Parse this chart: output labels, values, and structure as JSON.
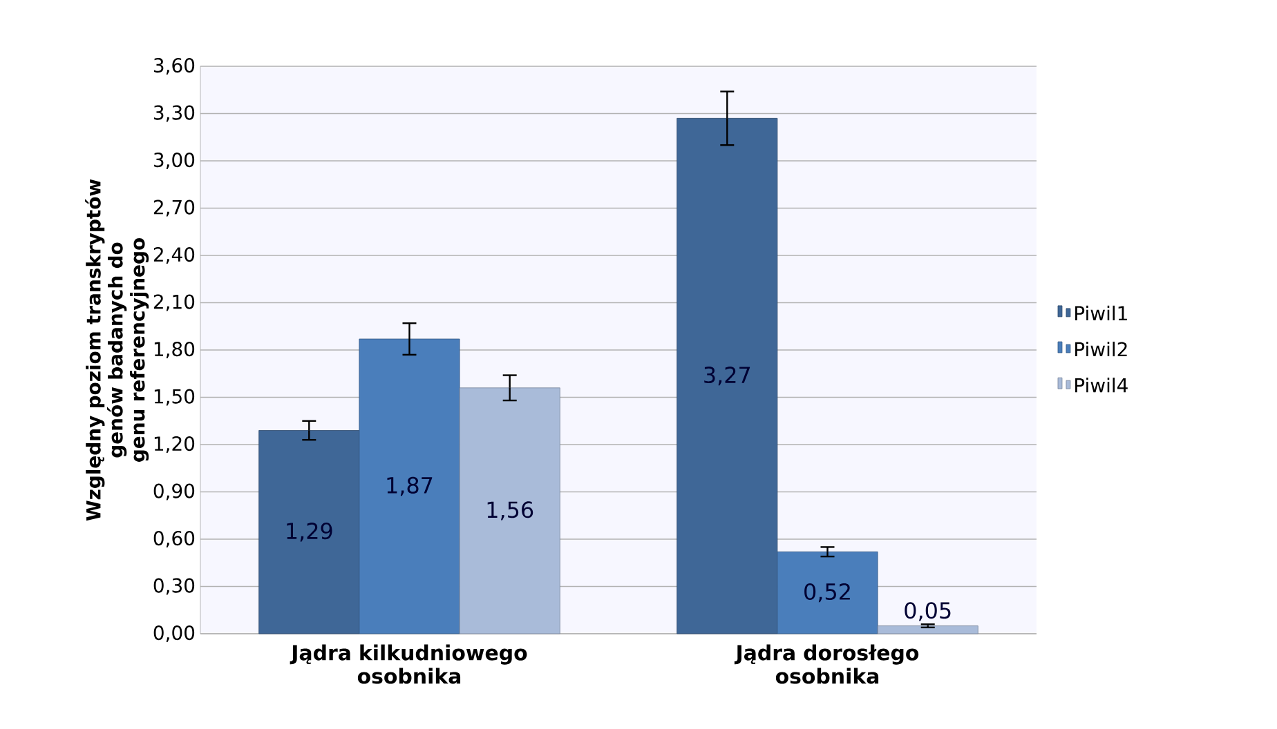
{
  "chart_data": {
    "type": "bar",
    "ylabel": "Względny poziom transkryptów genów badanych do genu referencyjnego",
    "categories": [
      "Jądra kilkudniowego osobnika",
      "Jądra dorosłego osobnika"
    ],
    "series": [
      {
        "name": "Piwil1",
        "color": "#3f6797",
        "values": [
          1.29,
          3.27
        ],
        "errors": [
          0.06,
          0.17
        ],
        "value_labels": [
          "1,29",
          "3,27"
        ]
      },
      {
        "name": "Piwil2",
        "color": "#4a7ebb",
        "values": [
          1.87,
          0.52
        ],
        "errors": [
          0.1,
          0.03
        ],
        "value_labels": [
          "1,87",
          "0,52"
        ]
      },
      {
        "name": "Piwil4",
        "color": "#a9bbd9",
        "values": [
          1.56,
          0.05
        ],
        "errors": [
          0.08,
          0.01
        ],
        "value_labels": [
          "1,56",
          "0,05"
        ]
      }
    ],
    "ylim": [
      0,
      3.6
    ],
    "yticks": [
      {
        "value": 0,
        "label": "0,00"
      },
      {
        "value": 0.3,
        "label": "0,30"
      },
      {
        "value": 0.6,
        "label": "0,60"
      },
      {
        "value": 0.9,
        "label": "0,90"
      },
      {
        "value": 1.2,
        "label": "1,20"
      },
      {
        "value": 1.5,
        "label": "1,50"
      },
      {
        "value": 1.8,
        "label": "1,80"
      },
      {
        "value": 2.1,
        "label": "2,10"
      },
      {
        "value": 2.4,
        "label": "2,40"
      },
      {
        "value": 2.7,
        "label": "2,70"
      },
      {
        "value": 3.0,
        "label": "3,00"
      },
      {
        "value": 3.3,
        "label": "3,30"
      },
      {
        "value": 3.6,
        "label": "3,60"
      }
    ],
    "grid": "y",
    "legend": "right"
  }
}
